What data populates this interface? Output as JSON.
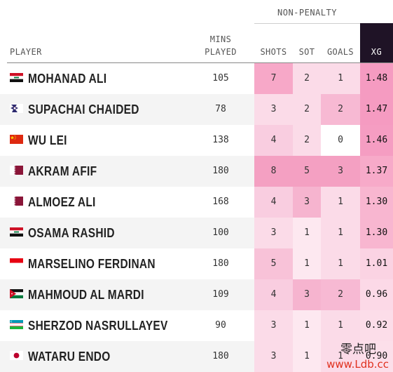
{
  "header": {
    "group_label": "NON-PENALTY",
    "player": "PLAYER",
    "mins_line1": "MINS",
    "mins_line2": "PLAYED",
    "shots": "SHOTS",
    "sot": "SOT",
    "goals": "GOALS",
    "xg": "XG"
  },
  "rows": [
    {
      "flag": "iraq",
      "name": "MOHANAD ALI",
      "mins": "105",
      "shots": "7",
      "sot": "2",
      "goals": "1",
      "xg": "1.48",
      "shots_color": "#f7a8c8",
      "sot_color": "#fbdbe8",
      "goals_color": "#fbdbe8",
      "xg_color": "#f59bc1"
    },
    {
      "flag": "thailand",
      "name": "SUPACHAI CHAIDED",
      "mins": "78",
      "shots": "3",
      "sot": "2",
      "goals": "2",
      "xg": "1.47",
      "shots_color": "#fbdbe8",
      "sot_color": "#fbdbe8",
      "goals_color": "#f7b9d3",
      "xg_color": "#f59bc1"
    },
    {
      "flag": "china",
      "name": "WU LEI",
      "mins": "138",
      "shots": "4",
      "sot": "2",
      "goals": "0",
      "xg": "1.46",
      "shots_color": "#f9cde0",
      "sot_color": "#fbdbe8",
      "goals_color": "#ffffff",
      "xg_color": "#f59dc2"
    },
    {
      "flag": "qatar",
      "name": "AKRAM AFIF",
      "mins": "180",
      "shots": "8",
      "sot": "5",
      "goals": "3",
      "xg": "1.37",
      "shots_color": "#f4a0c2",
      "sot_color": "#f4a0c2",
      "goals_color": "#f4a0c2",
      "xg_color": "#f7aac9"
    },
    {
      "flag": "qatar",
      "name": "ALMOEZ ALI",
      "mins": "168",
      "shots": "4",
      "sot": "3",
      "goals": "1",
      "xg": "1.30",
      "shots_color": "#f9cde0",
      "sot_color": "#f6b4cf",
      "goals_color": "#fbdbe8",
      "xg_color": "#f8b6d0"
    },
    {
      "flag": "iraq",
      "name": "OSAMA RASHID",
      "mins": "100",
      "shots": "3",
      "sot": "1",
      "goals": "1",
      "xg": "1.30",
      "shots_color": "#fbdbe8",
      "sot_color": "#fde8f0",
      "goals_color": "#fbdbe8",
      "xg_color": "#f8b6d0"
    },
    {
      "flag": "indonesia",
      "name": "MARSELINO FERDINAN",
      "mins": "180",
      "shots": "5",
      "sot": "1",
      "goals": "1",
      "xg": "1.01",
      "shots_color": "#f8c2d8",
      "sot_color": "#fde8f0",
      "goals_color": "#fbdbe8",
      "xg_color": "#fbd3e3"
    },
    {
      "flag": "jordan",
      "name": "MAHMOUD AL MARDI",
      "mins": "109",
      "shots": "4",
      "sot": "3",
      "goals": "2",
      "xg": "0.96",
      "shots_color": "#f9cde0",
      "sot_color": "#f6b4cf",
      "goals_color": "#f7b9d3",
      "xg_color": "#fcd9e7"
    },
    {
      "flag": "uzbekistan",
      "name": "SHERZOD NASRULLAYEV",
      "mins": "90",
      "shots": "3",
      "sot": "1",
      "goals": "1",
      "xg": "0.92",
      "shots_color": "#fbdbe8",
      "sot_color": "#fde8f0",
      "goals_color": "#fbdbe8",
      "xg_color": "#fcdde9"
    },
    {
      "flag": "japan",
      "name": "WATARU ENDO",
      "mins": "180",
      "shots": "3",
      "sot": "1",
      "goals": "1",
      "xg": "0.90",
      "shots_color": "#fbdbe8",
      "sot_color": "#fde8f0",
      "goals_color": "#fbdbe8",
      "xg_color": "#fcdfea"
    }
  ],
  "watermark": {
    "cn": "零点吧",
    "url": "www.Ldb.cc"
  }
}
